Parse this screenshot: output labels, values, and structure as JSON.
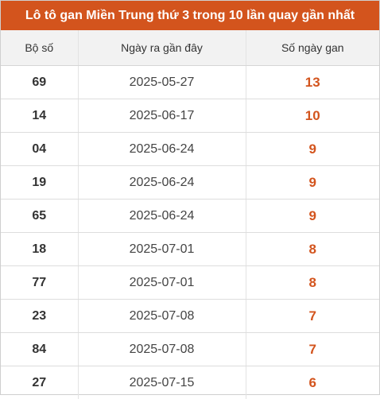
{
  "title": "Lô tô gan Miền Trung thứ 3 trong 10 lần quay gần nhất",
  "headers": {
    "number": "Bộ số",
    "last_date": "Ngày ra gần đây",
    "days": "Số ngày gan"
  },
  "colors": {
    "accent": "#d3541d",
    "header_bg": "#f2f2f2"
  },
  "rows": [
    {
      "number": "69",
      "last_date": "2025-05-27",
      "days": "13"
    },
    {
      "number": "14",
      "last_date": "2025-06-17",
      "days": "10"
    },
    {
      "number": "04",
      "last_date": "2025-06-24",
      "days": "9"
    },
    {
      "number": "19",
      "last_date": "2025-06-24",
      "days": "9"
    },
    {
      "number": "65",
      "last_date": "2025-06-24",
      "days": "9"
    },
    {
      "number": "18",
      "last_date": "2025-07-01",
      "days": "8"
    },
    {
      "number": "77",
      "last_date": "2025-07-01",
      "days": "8"
    },
    {
      "number": "23",
      "last_date": "2025-07-08",
      "days": "7"
    },
    {
      "number": "84",
      "last_date": "2025-07-08",
      "days": "7"
    },
    {
      "number": "27",
      "last_date": "2025-07-15",
      "days": "6"
    }
  ]
}
